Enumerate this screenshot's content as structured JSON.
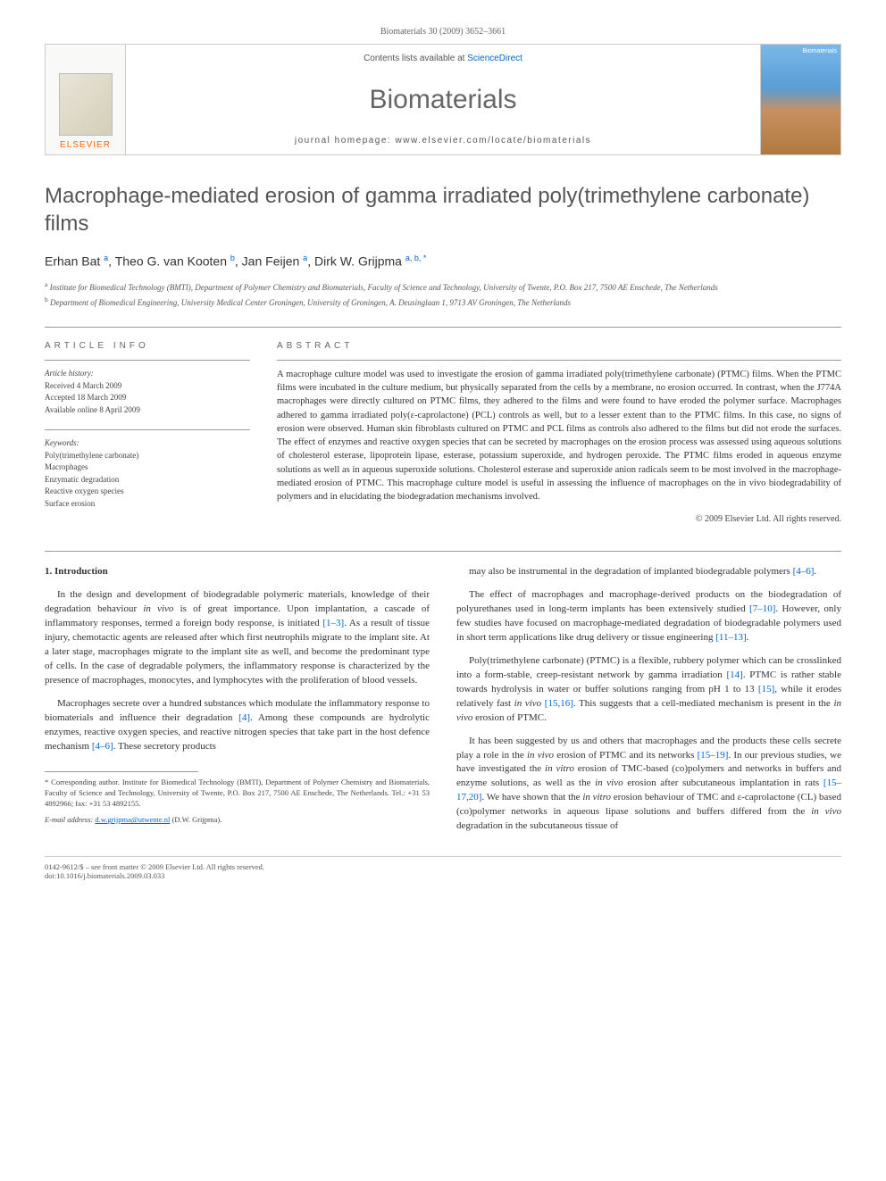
{
  "page_header": "Biomaterials 30 (2009) 3652–3661",
  "banner": {
    "publisher": "ELSEVIER",
    "contents_prefix": "Contents lists available at ",
    "contents_link": "ScienceDirect",
    "journal_name": "Biomaterials",
    "homepage_prefix": "journal homepage: ",
    "homepage_url": "www.elsevier.com/locate/biomaterials",
    "cover_label": "Biomaterials"
  },
  "title": "Macrophage-mediated erosion of gamma irradiated poly(trimethylene carbonate) films",
  "authors_html": "Erhan Bat <sup>a</sup>, Theo G. van Kooten <sup>b</sup>, Jan Feijen <sup>a</sup>, Dirk W. Grijpma <sup>a, b, *</sup>",
  "affiliations": [
    "a Institute for Biomedical Technology (BMTI), Department of Polymer Chemistry and Biomaterials, Faculty of Science and Technology, University of Twente, P.O. Box 217, 7500 AE Enschede, The Netherlands",
    "b Department of Biomedical Engineering, University Medical Center Groningen, University of Groningen, A. Deusinglaan 1, 9713 AV Groningen, The Netherlands"
  ],
  "info": {
    "heading": "ARTICLE INFO",
    "history_title": "Article history:",
    "history": [
      "Received 4 March 2009",
      "Accepted 18 March 2009",
      "Available online 8 April 2009"
    ],
    "keywords_title": "Keywords:",
    "keywords": [
      "Poly(trimethylene carbonate)",
      "Macrophages",
      "Enzymatic degradation",
      "Reactive oxygen species",
      "Surface erosion"
    ]
  },
  "abstract": {
    "heading": "ABSTRACT",
    "text": "A macrophage culture model was used to investigate the erosion of gamma irradiated poly(trimethylene carbonate) (PTMC) films. When the PTMC films were incubated in the culture medium, but physically separated from the cells by a membrane, no erosion occurred. In contrast, when the J774A macrophages were directly cultured on PTMC films, they adhered to the films and were found to have eroded the polymer surface. Macrophages adhered to gamma irradiated poly(ε-caprolactone) (PCL) controls as well, but to a lesser extent than to the PTMC films. In this case, no signs of erosion were observed. Human skin fibroblasts cultured on PTMC and PCL films as controls also adhered to the films but did not erode the surfaces. The effect of enzymes and reactive oxygen species that can be secreted by macrophages on the erosion process was assessed using aqueous solutions of cholesterol esterase, lipoprotein lipase, esterase, potassium superoxide, and hydrogen peroxide. The PTMC films eroded in aqueous enzyme solutions as well as in aqueous superoxide solutions. Cholesterol esterase and superoxide anion radicals seem to be most involved in the macrophage-mediated erosion of PTMC. This macrophage culture model is useful in assessing the influence of macrophages on the in vivo biodegradability of polymers and in elucidating the biodegradation mechanisms involved.",
    "copyright": "© 2009 Elsevier Ltd. All rights reserved."
  },
  "body": {
    "section_heading": "1. Introduction",
    "left_paras": [
      "In the design and development of biodegradable polymeric materials, knowledge of their degradation behaviour in vivo is of great importance. Upon implantation, a cascade of inflammatory responses, termed a foreign body response, is initiated [1–3]. As a result of tissue injury, chemotactic agents are released after which first neutrophils migrate to the implant site. At a later stage, macrophages migrate to the implant site as well, and become the predominant type of cells. In the case of degradable polymers, the inflammatory response is characterized by the presence of macrophages, monocytes, and lymphocytes with the proliferation of blood vessels.",
      "Macrophages secrete over a hundred substances which modulate the inflammatory response to biomaterials and influence their degradation [4]. Among these compounds are hydrolytic enzymes, reactive oxygen species, and reactive nitrogen species that take part in the host defence mechanism [4–6]. These secretory products"
    ],
    "right_paras": [
      "may also be instrumental in the degradation of implanted biodegradable polymers [4–6].",
      "The effect of macrophages and macrophage-derived products on the biodegradation of polyurethanes used in long-term implants has been extensively studied [7–10]. However, only few studies have focused on macrophage-mediated degradation of biodegradable polymers used in short term applications like drug delivery or tissue engineering [11–13].",
      "Poly(trimethylene carbonate) (PTMC) is a flexible, rubbery polymer which can be crosslinked into a form-stable, creep-resistant network by gamma irradiation [14]. PTMC is rather stable towards hydrolysis in water or buffer solutions ranging from pH 1 to 13 [15], while it erodes relatively fast in vivo [15,16]. This suggests that a cell-mediated mechanism is present in the in vivo erosion of PTMC.",
      "It has been suggested by us and others that macrophages and the products these cells secrete play a role in the in vivo erosion of PTMC and its networks [15–19]. In our previous studies, we have investigated the in vitro erosion of TMC-based (co)polymers and networks in buffers and enzyme solutions, as well as the in vivo erosion after subcutaneous implantation in rats [15–17,20]. We have shown that the in vitro erosion behaviour of TMC and ε-caprolactone (CL) based (co)polymer networks in aqueous lipase solutions and buffers differed from the in vivo degradation in the subcutaneous tissue of"
    ]
  },
  "footnote": {
    "corresponding": "* Corresponding author. Institute for Biomedical Technology (BMTI), Department of Polymer Chemistry and Biomaterials, Faculty of Science and Technology, University of Twente, P.O. Box 217, 7500 AE Enschede, The Netherlands. Tel.: +31 53 4892966; fax: +31 53 4892155.",
    "email_label": "E-mail address:",
    "email": "d.w.grijpma@utwente.nl",
    "email_person": "(D.W. Grijpma)."
  },
  "bottom": {
    "left": "0142-9612/$ – see front matter © 2009 Elsevier Ltd. All rights reserved.\ndoi:10.1016/j.biomaterials.2009.03.033"
  },
  "colors": {
    "link": "#0066cc",
    "title_gray": "#555555",
    "text": "#333333",
    "orange": "#ff6600"
  }
}
